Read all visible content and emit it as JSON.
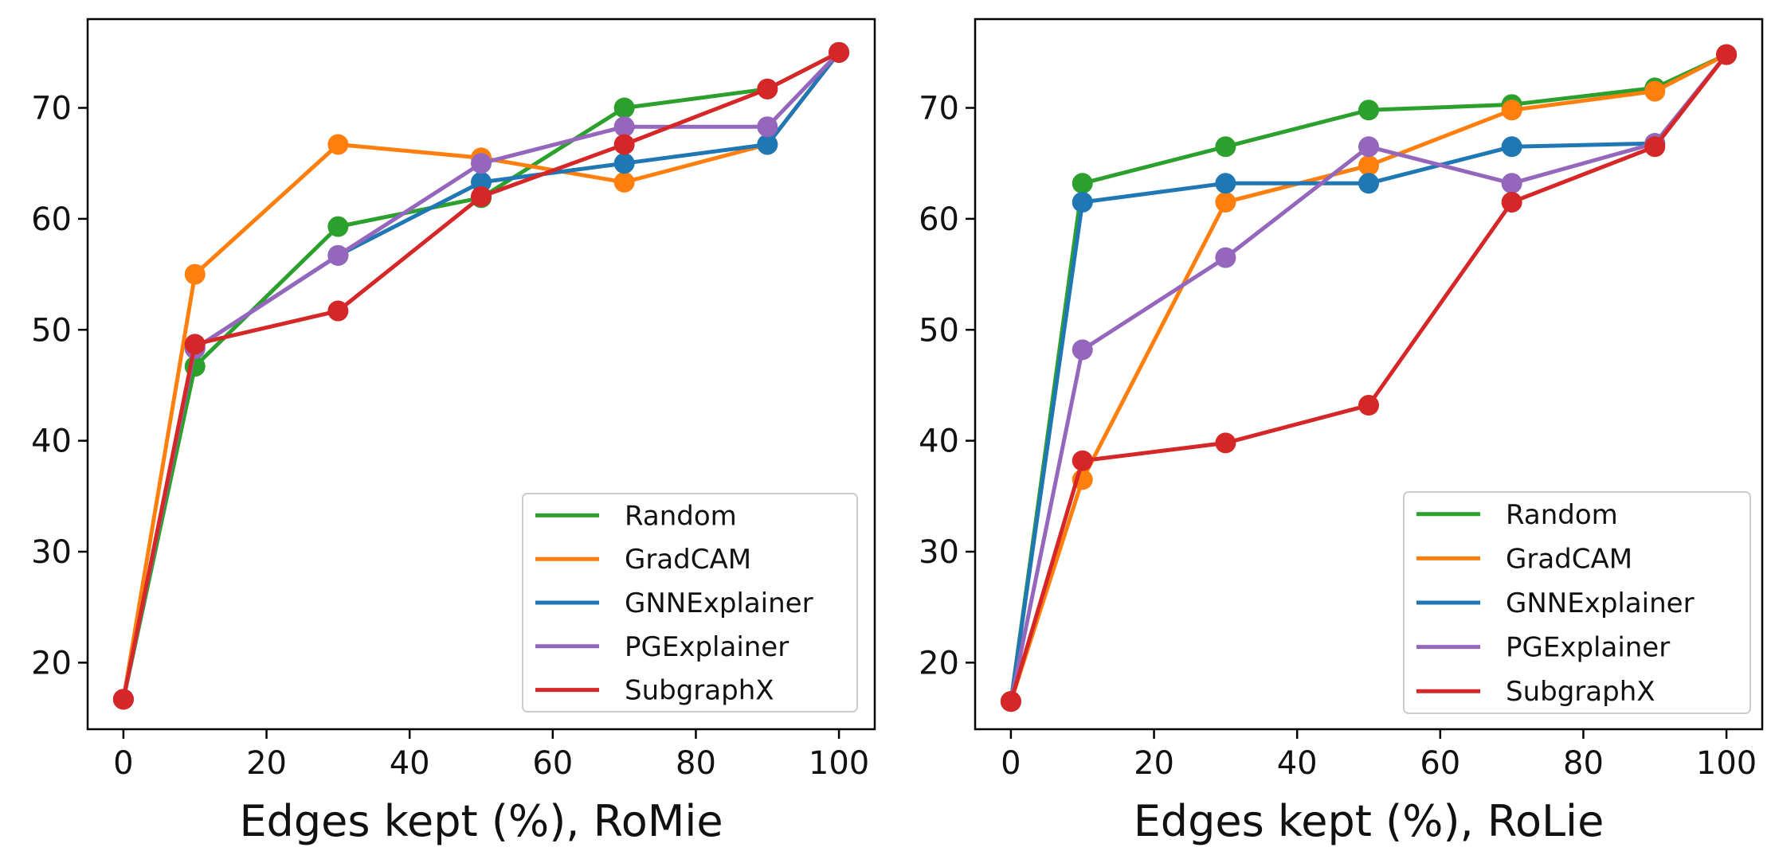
{
  "chart_data": [
    {
      "type": "line",
      "xlabel": "Edges kept (%), RoMie",
      "ylabel": "",
      "xlim": [
        -5,
        105
      ],
      "ylim": [
        14,
        78
      ],
      "xticks": [
        "0",
        "20",
        "40",
        "60",
        "80",
        "100"
      ],
      "yticks": [
        "20",
        "30",
        "40",
        "50",
        "60",
        "70"
      ],
      "grid": false,
      "legend": "lower-right",
      "x": [
        0,
        10,
        30,
        50,
        70,
        90,
        100
      ],
      "series": [
        {
          "name": "Random",
          "color": "#2ca02c",
          "values": [
            16.7,
            46.7,
            59.3,
            61.9,
            70.0,
            71.7,
            75.0
          ]
        },
        {
          "name": "GradCAM",
          "color": "#ff7f0e",
          "values": [
            16.7,
            55.0,
            66.7,
            65.5,
            63.3,
            66.7,
            75.0
          ]
        },
        {
          "name": "GNNExplainer",
          "color": "#1f77b4",
          "values": [
            16.7,
            48.3,
            56.7,
            63.3,
            65.0,
            66.7,
            75.0
          ]
        },
        {
          "name": "PGExplainer",
          "color": "#9467bd",
          "values": [
            16.7,
            48.3,
            56.7,
            65.0,
            68.3,
            68.3,
            75.0
          ]
        },
        {
          "name": "SubgraphX",
          "color": "#d62728",
          "values": [
            16.7,
            48.7,
            51.7,
            62.0,
            66.7,
            71.7,
            75.0
          ]
        }
      ]
    },
    {
      "type": "line",
      "xlabel": "Edges kept (%), RoLie",
      "ylabel": "",
      "xlim": [
        -5,
        105
      ],
      "ylim": [
        14,
        78
      ],
      "xticks": [
        "0",
        "20",
        "40",
        "60",
        "80",
        "100"
      ],
      "yticks": [
        "20",
        "30",
        "40",
        "50",
        "60",
        "70"
      ],
      "grid": false,
      "legend": "lower-right",
      "x": [
        0,
        10,
        30,
        50,
        70,
        90,
        100
      ],
      "series": [
        {
          "name": "Random",
          "color": "#2ca02c",
          "values": [
            16.5,
            63.2,
            66.5,
            69.8,
            70.3,
            71.8,
            74.8
          ]
        },
        {
          "name": "GradCAM",
          "color": "#ff7f0e",
          "values": [
            16.5,
            36.5,
            61.5,
            64.8,
            69.8,
            71.5,
            74.8
          ]
        },
        {
          "name": "GNNExplainer",
          "color": "#1f77b4",
          "values": [
            16.5,
            61.5,
            63.2,
            63.2,
            66.5,
            66.8,
            74.8
          ]
        },
        {
          "name": "PGExplainer",
          "color": "#9467bd",
          "values": [
            16.5,
            48.2,
            56.5,
            66.5,
            63.2,
            66.8,
            74.8
          ]
        },
        {
          "name": "SubgraphX",
          "color": "#d62728",
          "values": [
            16.5,
            38.2,
            39.8,
            43.2,
            61.5,
            66.5,
            74.8
          ]
        }
      ]
    }
  ]
}
